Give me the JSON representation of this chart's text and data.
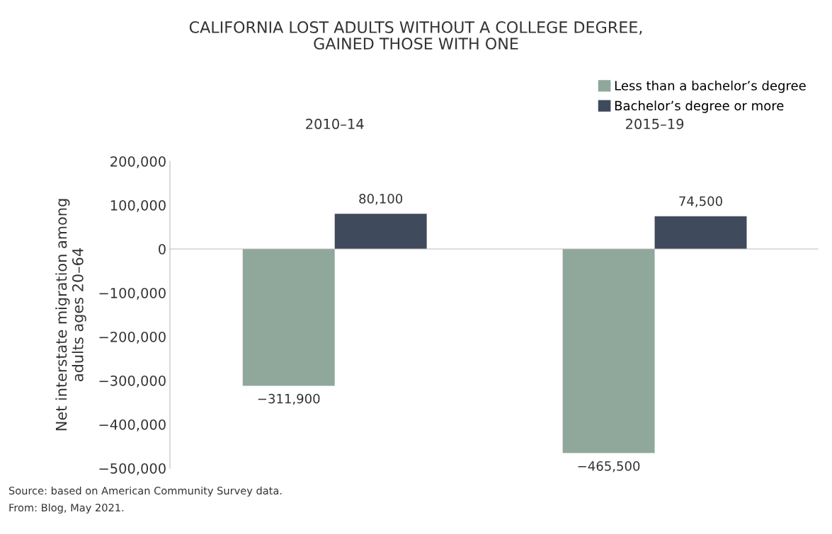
{
  "chart_data": {
    "type": "bar",
    "title": "CALIFORNIA LOST ADULTS WITHOUT A COLLEGE DEGREE,\nGAINED THOSE WITH ONE",
    "ylabel": "Net interstate migration among\nadults ages 20–64",
    "categories": [
      "2010–14",
      "2015–19"
    ],
    "series": [
      {
        "name": "Less than a bachelor’s degree",
        "color": "#8fa89b",
        "values": [
          -311900,
          -465500
        ],
        "value_labels": [
          "−311,900",
          "−465,500"
        ]
      },
      {
        "name": "Bachelor’s degree or more",
        "color": "#3f4a5c",
        "values": [
          80100,
          74500
        ],
        "value_labels": [
          "80,100",
          "74,500"
        ]
      }
    ],
    "ylim": [
      -500000,
      200000
    ],
    "yticks": [
      {
        "value": -500000,
        "label": "−500,000"
      },
      {
        "value": -400000,
        "label": "−400,000"
      },
      {
        "value": -300000,
        "label": "−300,000"
      },
      {
        "value": -200000,
        "label": "−200,000"
      },
      {
        "value": -100000,
        "label": "−100,000"
      },
      {
        "value": 0,
        "label": "0"
      },
      {
        "value": 100000,
        "label": "100,000"
      },
      {
        "value": 200000,
        "label": "200,000"
      }
    ],
    "legend": "top right",
    "annotations": [
      "Source: based on American Community Survey data.",
      "From: Blog, May 2021."
    ]
  }
}
